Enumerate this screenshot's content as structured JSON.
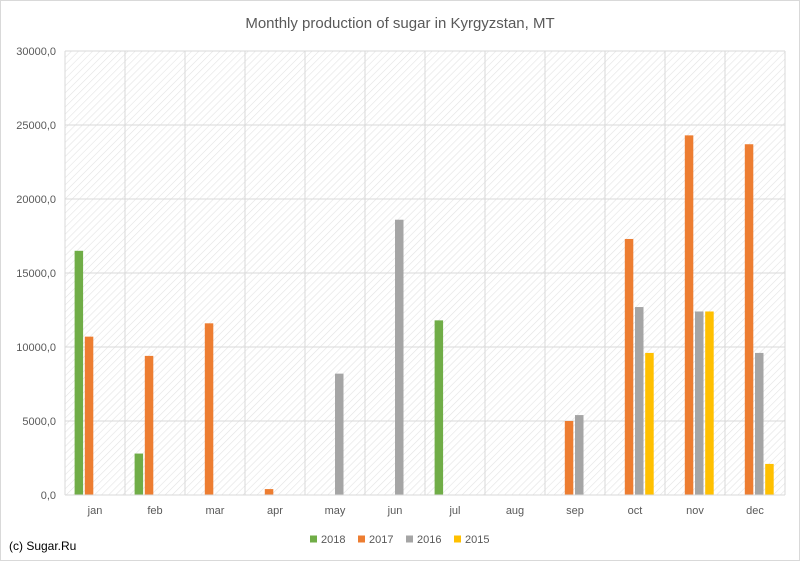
{
  "credit": "(c) Sugar.Ru",
  "chart_data": {
    "type": "bar",
    "title": "Monthly production of sugar in Kyrgyzstan, MT",
    "xlabel": "",
    "ylabel": "",
    "categories": [
      "jan",
      "feb",
      "mar",
      "apr",
      "may",
      "jun",
      "jul",
      "aug",
      "sep",
      "oct",
      "nov",
      "dec"
    ],
    "series": [
      {
        "name": "2018",
        "color": "#70ad47",
        "values": [
          16500,
          2800,
          null,
          null,
          null,
          null,
          11800,
          null,
          null,
          null,
          null,
          null
        ]
      },
      {
        "name": "2017",
        "color": "#ed7d31",
        "values": [
          10700,
          9400,
          11600,
          400,
          null,
          null,
          null,
          null,
          5000,
          17300,
          24300,
          23700
        ]
      },
      {
        "name": "2016",
        "color": "#a5a5a5",
        "values": [
          null,
          null,
          null,
          null,
          8200,
          18600,
          null,
          null,
          5400,
          12700,
          12400,
          9600
        ]
      },
      {
        "name": "2015",
        "color": "#ffc000",
        "values": [
          null,
          null,
          null,
          null,
          null,
          null,
          null,
          null,
          null,
          9600,
          12400,
          2100
        ]
      }
    ],
    "ylim": [
      0,
      30000
    ],
    "yticks": [
      "0,0",
      "5000,0",
      "10000,0",
      "15000,0",
      "20000,0",
      "25000,0",
      "30000,0"
    ],
    "grid": true,
    "legend": "bottom"
  }
}
